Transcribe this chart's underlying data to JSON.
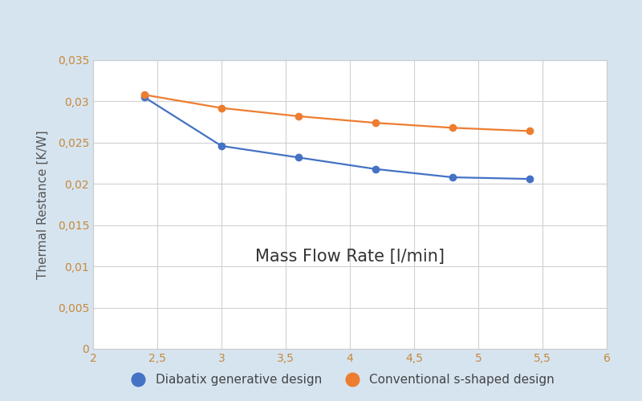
{
  "xlabel": "Mass Flow Rate [l/min]",
  "ylabel": "Thermal Restance [K/W]",
  "xlim": [
    2,
    6
  ],
  "ylim": [
    0,
    0.035
  ],
  "xticks": [
    2,
    2.5,
    3,
    3.5,
    4,
    4.5,
    5,
    5.5,
    6
  ],
  "yticks": [
    0,
    0.005,
    0.01,
    0.015,
    0.02,
    0.025,
    0.03,
    0.035
  ],
  "diabatix_x": [
    2.4,
    3.0,
    3.6,
    4.2,
    4.8,
    5.4
  ],
  "diabatix_y": [
    0.0305,
    0.0246,
    0.0232,
    0.0218,
    0.0208,
    0.0206
  ],
  "conventional_x": [
    2.4,
    3.0,
    3.6,
    4.2,
    4.8,
    5.4
  ],
  "conventional_y": [
    0.0308,
    0.0292,
    0.0282,
    0.0274,
    0.0268,
    0.0264
  ],
  "diabatix_color": "#4472c4",
  "conventional_color": "#ed7d31",
  "diabatix_label": "Diabatix generative design",
  "conventional_label": "Conventional s-shaped design",
  "background_color": "#d6e4f0",
  "plot_bg_color": "#ffffff",
  "grid_color": "#d0d0d0",
  "tick_color": "#c8893a",
  "marker_size": 6,
  "line_width": 1.6,
  "xlabel_fontsize": 15,
  "ylabel_fontsize": 11,
  "tick_fontsize": 10,
  "legend_fontsize": 11
}
